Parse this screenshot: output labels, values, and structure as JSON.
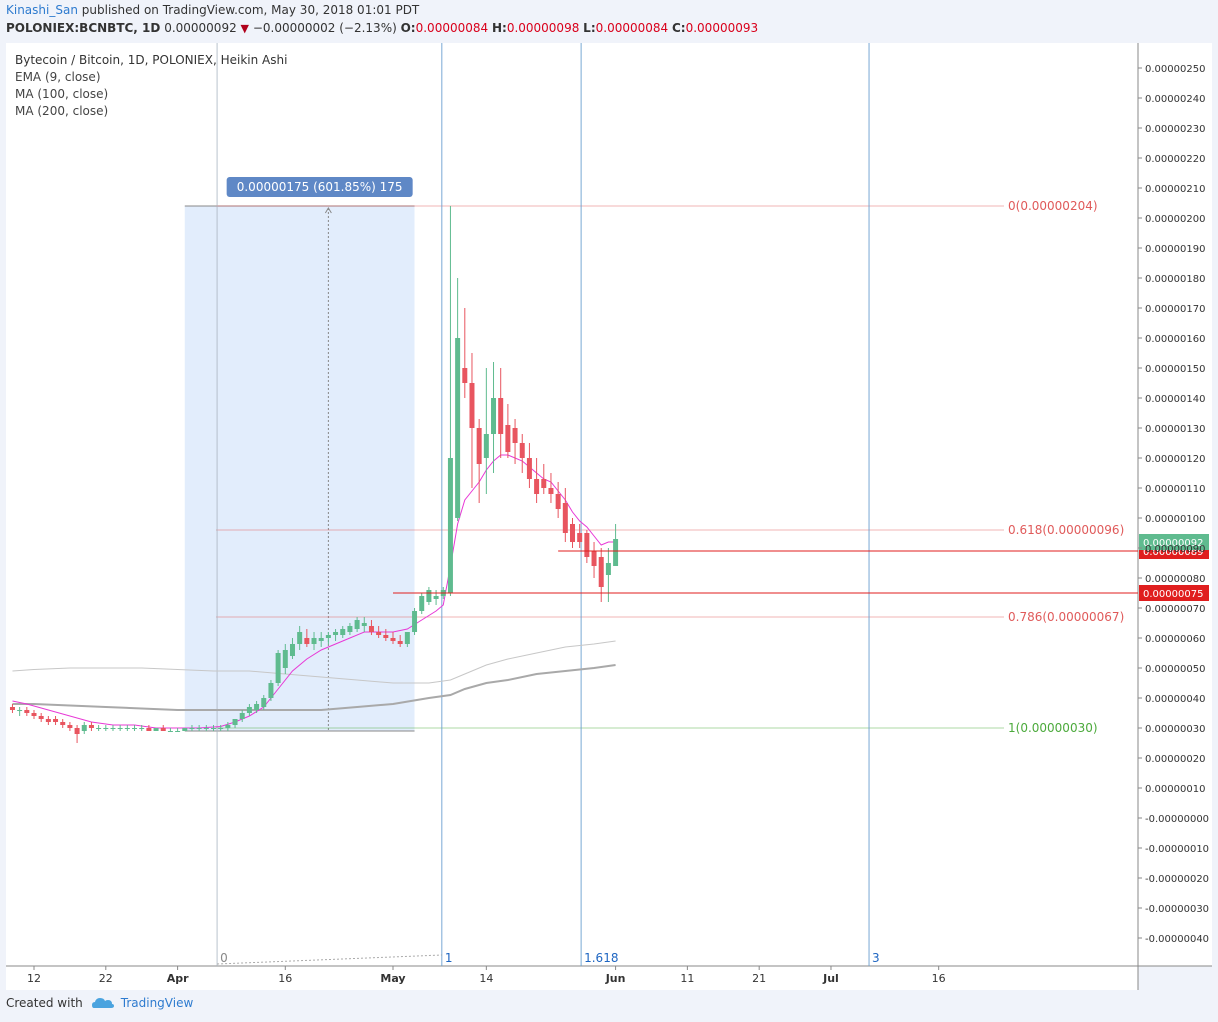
{
  "header": {
    "author": "Kinashi_San",
    "published_text": "published on TradingView.com, May 30, 2018 01:01 PDT",
    "symbol": "POLONIEX:BCNBTC, 1D",
    "last_price": "0.00000092",
    "change": "−0.00000002 (−2.13%)",
    "o_label": "O:",
    "o_value": "0.00000084",
    "h_label": "H:",
    "h_value": "0.00000098",
    "l_label": "L:",
    "l_value": "0.00000084",
    "c_label": "C:",
    "c_value": "0.00000093"
  },
  "legend": {
    "title": "Bytecoin / Bitcoin, 1D, POLONIEX, Heikin Ashi",
    "indicators": [
      "EMA (9, close)",
      "MA (100, close)",
      "MA (200, close)"
    ]
  },
  "footer": {
    "created_with": "Created with",
    "brand": "TradingView"
  },
  "colors": {
    "up": "#5fbb8f",
    "down": "#e8555f",
    "ema": "#e838d6",
    "ma": "#b4b4b4",
    "fib_red": "#e05a5a",
    "fib_green": "#4caa3c",
    "line_red": "#e01e1e",
    "time_fib": "#6a9fd0",
    "range_fill": "#ddeafc",
    "range_label": "#5f88c6"
  },
  "chart_data": {
    "type": "candlestick",
    "y_axis": {
      "ylim": [
        -4.5e-07,
        2.58e-06
      ],
      "ticks": [
        "-0.00000040",
        "-0.00000030",
        "-0.00000020",
        "-0.00000010",
        "-0.00000000",
        "0.00000010",
        "0.00000020",
        "0.00000030",
        "0.00000040",
        "0.00000050",
        "0.00000060",
        "0.00000070",
        "0.00000080",
        "0.00000090",
        "0.00000100",
        "0.00000110",
        "0.00000120",
        "0.00000130",
        "0.00000140",
        "0.00000150",
        "0.00000160",
        "0.00000170",
        "0.00000180",
        "0.00000190",
        "0.00000200",
        "0.00000210",
        "0.00000220",
        "0.00000230",
        "0.00000240",
        "0.00000250"
      ],
      "tick_values": [
        -40,
        -30,
        -20,
        -10,
        0,
        10,
        20,
        30,
        40,
        50,
        60,
        70,
        80,
        90,
        100,
        110,
        120,
        130,
        140,
        150,
        160,
        170,
        180,
        190,
        200,
        210,
        220,
        230,
        240,
        250
      ],
      "unit_scale": 1e-09
    },
    "x_axis": {
      "ticks": [
        {
          "label": "12",
          "day": 0,
          "bold": false
        },
        {
          "label": "22",
          "day": 10,
          "bold": false
        },
        {
          "label": "Apr",
          "day": 20,
          "bold": true
        },
        {
          "label": "16",
          "day": 35,
          "bold": false
        },
        {
          "label": "May",
          "day": 50,
          "bold": true
        },
        {
          "label": "14",
          "day": 63,
          "bold": false
        },
        {
          "label": "Jun",
          "day": 81,
          "bold": true
        },
        {
          "label": "11",
          "day": 91,
          "bold": false
        },
        {
          "label": "21",
          "day": 101,
          "bold": false
        },
        {
          "label": "Jul",
          "day": 111,
          "bold": true
        },
        {
          "label": "16",
          "day": 126,
          "bold": false
        }
      ]
    },
    "candles": [
      [
        -3,
        37,
        38,
        35,
        36
      ],
      [
        -2,
        36,
        37,
        34,
        36
      ],
      [
        -1,
        36,
        37,
        34,
        35
      ],
      [
        0,
        35,
        36,
        33,
        34
      ],
      [
        1,
        34,
        35,
        32,
        33
      ],
      [
        2,
        33,
        34,
        31,
        32
      ],
      [
        3,
        33,
        34,
        31,
        32
      ],
      [
        4,
        32,
        33,
        30,
        31
      ],
      [
        5,
        31,
        32,
        29,
        30
      ],
      [
        6,
        30,
        31,
        25,
        28
      ],
      [
        7,
        29,
        32,
        28,
        31
      ],
      [
        8,
        31,
        32,
        29,
        30
      ],
      [
        9,
        30,
        31,
        29,
        30
      ],
      [
        10,
        30,
        31,
        29,
        30
      ],
      [
        11,
        30,
        31,
        29,
        30
      ],
      [
        12,
        30,
        31,
        29,
        30
      ],
      [
        13,
        30,
        31,
        29,
        30
      ],
      [
        14,
        30,
        31,
        29,
        30
      ],
      [
        15,
        30,
        31,
        29,
        30
      ],
      [
        16,
        30,
        31,
        29,
        29
      ],
      [
        17,
        29,
        30,
        29,
        30
      ],
      [
        18,
        30,
        31,
        29,
        29
      ],
      [
        19,
        29,
        30,
        29,
        29
      ],
      [
        20,
        29,
        30,
        29,
        29
      ],
      [
        21,
        29,
        30,
        29,
        30
      ],
      [
        22,
        30,
        31,
        29,
        30
      ],
      [
        23,
        30,
        31,
        29,
        30
      ],
      [
        24,
        30,
        31,
        29,
        30
      ],
      [
        25,
        30,
        31,
        29,
        30
      ],
      [
        26,
        30,
        31,
        29,
        30
      ],
      [
        27,
        30,
        32,
        29,
        31
      ],
      [
        28,
        31,
        33,
        30,
        33
      ],
      [
        29,
        33,
        36,
        32,
        35
      ],
      [
        30,
        35,
        38,
        34,
        37
      ],
      [
        31,
        36,
        39,
        35,
        38
      ],
      [
        32,
        37,
        41,
        36,
        40
      ],
      [
        33,
        40,
        46,
        39,
        45
      ],
      [
        34,
        45,
        56,
        44,
        55
      ],
      [
        35,
        50,
        58,
        48,
        56
      ],
      [
        36,
        54,
        60,
        53,
        58
      ],
      [
        37,
        58,
        64,
        56,
        62
      ],
      [
        38,
        60,
        63,
        57,
        58
      ],
      [
        39,
        58,
        62,
        56,
        60
      ],
      [
        40,
        59,
        62,
        57,
        60
      ],
      [
        41,
        60,
        62,
        58,
        61
      ],
      [
        42,
        61,
        63,
        59,
        62
      ],
      [
        43,
        61,
        64,
        60,
        63
      ],
      [
        44,
        62,
        65,
        61,
        64
      ],
      [
        45,
        63,
        67,
        62,
        66
      ],
      [
        46,
        64,
        67,
        62,
        65
      ],
      [
        47,
        64,
        66,
        61,
        62
      ],
      [
        48,
        62,
        64,
        60,
        61
      ],
      [
        49,
        61,
        63,
        59,
        60
      ],
      [
        50,
        60,
        62,
        58,
        59
      ],
      [
        51,
        59,
        61,
        57,
        58
      ],
      [
        52,
        58,
        62,
        57,
        62
      ],
      [
        53,
        62,
        70,
        61,
        69
      ],
      [
        54,
        69,
        75,
        68,
        74
      ],
      [
        55,
        72,
        77,
        71,
        76
      ],
      [
        56,
        73,
        76,
        71,
        74
      ],
      [
        57,
        74,
        77,
        73,
        76
      ],
      [
        58,
        75,
        204,
        74,
        120
      ],
      [
        59,
        100,
        180,
        99,
        160
      ],
      [
        60,
        150,
        170,
        140,
        145
      ],
      [
        61,
        145,
        155,
        110,
        130
      ],
      [
        62,
        130,
        133,
        105,
        118
      ],
      [
        63,
        120,
        150,
        108,
        128
      ],
      [
        64,
        128,
        152,
        115,
        140
      ],
      [
        65,
        140,
        150,
        120,
        128
      ],
      [
        66,
        131,
        138,
        120,
        122
      ],
      [
        67,
        130,
        133,
        118,
        125
      ],
      [
        68,
        125,
        128,
        115,
        120
      ],
      [
        69,
        120,
        125,
        110,
        113
      ],
      [
        70,
        113,
        120,
        105,
        108
      ],
      [
        71,
        113,
        118,
        108,
        110
      ],
      [
        72,
        110,
        115,
        105,
        108
      ],
      [
        73,
        108,
        112,
        100,
        103
      ],
      [
        74,
        105,
        110,
        92,
        95
      ],
      [
        75,
        98,
        100,
        90,
        92
      ],
      [
        76,
        95,
        98,
        90,
        92
      ],
      [
        77,
        95,
        96,
        85,
        87
      ],
      [
        78,
        89,
        92,
        80,
        84
      ],
      [
        79,
        87,
        90,
        72,
        77
      ],
      [
        80,
        81,
        90,
        72,
        85
      ],
      [
        81,
        84,
        98,
        84,
        93
      ]
    ],
    "ema9": [
      [
        -3,
        39
      ],
      [
        -1,
        38
      ],
      [
        2,
        36
      ],
      [
        5,
        34
      ],
      [
        8,
        32
      ],
      [
        11,
        31
      ],
      [
        14,
        31
      ],
      [
        17,
        30
      ],
      [
        20,
        30
      ],
      [
        23,
        30
      ],
      [
        26,
        30.5
      ],
      [
        28,
        32
      ],
      [
        30,
        34
      ],
      [
        32,
        37
      ],
      [
        34,
        43
      ],
      [
        36,
        49
      ],
      [
        38,
        53
      ],
      [
        40,
        56
      ],
      [
        42,
        58
      ],
      [
        44,
        60
      ],
      [
        46,
        62
      ],
      [
        48,
        62
      ],
      [
        50,
        62
      ],
      [
        52,
        63
      ],
      [
        54,
        66
      ],
      [
        56,
        69
      ],
      [
        57,
        71
      ],
      [
        58,
        84
      ],
      [
        59,
        98
      ],
      [
        60,
        106
      ],
      [
        61,
        109
      ],
      [
        62,
        112
      ],
      [
        63,
        116
      ],
      [
        64,
        119
      ],
      [
        65,
        121
      ],
      [
        66,
        121
      ],
      [
        67,
        120
      ],
      [
        68,
        119
      ],
      [
        69,
        117
      ],
      [
        70,
        115
      ],
      [
        71,
        113
      ],
      [
        72,
        112
      ],
      [
        73,
        109
      ],
      [
        74,
        106
      ],
      [
        75,
        102
      ],
      [
        76,
        99
      ],
      [
        77,
        97
      ],
      [
        78,
        94
      ],
      [
        79,
        91
      ],
      [
        80,
        92
      ],
      [
        81,
        92
      ]
    ],
    "ma100": [
      [
        -3,
        49
      ],
      [
        0,
        49.5
      ],
      [
        5,
        50
      ],
      [
        10,
        50
      ],
      [
        15,
        50
      ],
      [
        20,
        49.5
      ],
      [
        25,
        49
      ],
      [
        30,
        49
      ],
      [
        35,
        48
      ],
      [
        40,
        47
      ],
      [
        45,
        46
      ],
      [
        50,
        45
      ],
      [
        55,
        45
      ],
      [
        58,
        46
      ],
      [
        60,
        48
      ],
      [
        63,
        51
      ],
      [
        66,
        53
      ],
      [
        70,
        55
      ],
      [
        74,
        57
      ],
      [
        78,
        58
      ],
      [
        81,
        59
      ]
    ],
    "ma200": [
      [
        -3,
        38
      ],
      [
        0,
        38
      ],
      [
        5,
        37.5
      ],
      [
        10,
        37
      ],
      [
        15,
        36.5
      ],
      [
        20,
        36
      ],
      [
        25,
        36
      ],
      [
        30,
        36
      ],
      [
        35,
        36
      ],
      [
        40,
        36
      ],
      [
        45,
        37
      ],
      [
        50,
        38
      ],
      [
        55,
        40
      ],
      [
        58,
        41
      ],
      [
        60,
        43
      ],
      [
        63,
        45
      ],
      [
        66,
        46
      ],
      [
        70,
        48
      ],
      [
        74,
        49
      ],
      [
        78,
        50
      ],
      [
        81,
        51
      ]
    ],
    "date_range": {
      "x0": 21,
      "x1": 53,
      "y_low": 29,
      "y_high": 204,
      "label": "0.00000175 (601.85%) 175",
      "midline_x": 41
    },
    "fib_levels": [
      {
        "label": "0(0.00000204)",
        "value": 204,
        "color": "#e05a5a"
      },
      {
        "label": "0.618(0.00000096)",
        "value": 96,
        "color": "#e05a5a"
      },
      {
        "label": "0.786(0.00000067)",
        "value": 67,
        "color": "#e05a5a"
      },
      {
        "label": "1(0.00000030)",
        "value": 30,
        "color": "#4caa3c"
      }
    ],
    "horizontal_lines": [
      {
        "value": 89,
        "from": 73,
        "label": "0.00000089"
      },
      {
        "value": 75,
        "from": 50,
        "label": "0.00000075"
      }
    ],
    "last_price_label": {
      "value": 92,
      "label": "0.00000092"
    },
    "time_fib": [
      {
        "day": 25.5,
        "label": "0"
      },
      {
        "day": 56.8,
        "label": "1"
      },
      {
        "day": 76.2,
        "label": "1.618"
      },
      {
        "day": 116.3,
        "label": "3"
      }
    ]
  }
}
